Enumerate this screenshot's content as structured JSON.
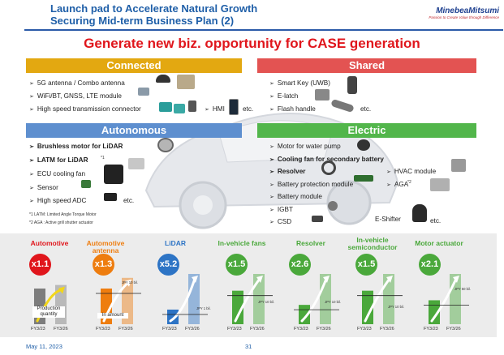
{
  "header": {
    "title_line1": "Launch pad to Accelerate Natural Growth",
    "title_line2": "Securing Mid-term Business Plan (2)",
    "logo_name": "MinebeaMitsumi",
    "logo_tagline": "Passion to Create Value through Difference"
  },
  "headline": "Generate new biz. opportunity for CASE generation",
  "connected": {
    "title": "Connected",
    "items": [
      "5G antenna / Combo antenna",
      "WiFi/BT, GNSS, LTE module",
      "High speed transmission connector"
    ],
    "hmi": "HMI",
    "etc": "etc."
  },
  "shared": {
    "title": "Shared",
    "items": [
      "Smart Key (UWB)",
      "E-latch",
      "Flash handle"
    ],
    "etc": "etc."
  },
  "autonomous": {
    "title": "Autonomous",
    "items": [
      "Brushless motor for LiDAR",
      "LATM for LiDAR",
      "ECU cooling fan",
      "Sensor",
      "High speed ADC"
    ],
    "latm_sup": "*1",
    "etc": "etc.",
    "notes": [
      "*1 LATM: Limited Angle Torque Motor",
      "*2 AGA : Active grill shutter actuator"
    ]
  },
  "electric": {
    "title": "Electric",
    "items": [
      "Motor for water pump",
      "Cooling fan for secondary battery",
      "Resolver",
      "Battery protection module",
      "Battery module",
      "IGBT",
      "CSD"
    ],
    "hvac": "HVAC module",
    "aga": "AGA",
    "aga_sup": "*2",
    "eshifter": "E-Shifter",
    "etc": "etc."
  },
  "growth": {
    "fy_labels": [
      "FY3/23",
      "FY3/26"
    ],
    "unit_labels": [
      "Production quantity",
      "In amount"
    ],
    "categories": [
      {
        "name": "Automotive",
        "multiple": "x1.1"
      },
      {
        "name": "Automotive antenna",
        "multiple": "x1.3",
        "jpy": "JPY 10 bil."
      },
      {
        "name": "LiDAR",
        "multiple": "x5.2",
        "jpy": "JPY 1 bil."
      },
      {
        "name": "In-vehicle fans",
        "multiple": "x1.5",
        "jpy": "JPY 10 bil."
      },
      {
        "name": "Resolver",
        "multiple": "x2.6",
        "jpy": "JPY 10 bil."
      },
      {
        "name": "In-vehicle semiconductor",
        "multiple": "x1.5",
        "jpy": "JPY 10 bil."
      },
      {
        "name": "Motor actuator",
        "multiple": "x2.1",
        "jpy": "JPY 50 bil."
      }
    ]
  },
  "chart_data": {
    "type": "bar",
    "categories": [
      "FY3/23",
      "FY3/26"
    ],
    "series": [
      {
        "name": "Automotive",
        "values": [
          1.0,
          1.1
        ]
      },
      {
        "name": "Automotive antenna",
        "values": [
          1.0,
          1.3
        ]
      },
      {
        "name": "LiDAR",
        "values": [
          1.0,
          5.2
        ]
      },
      {
        "name": "In-vehicle fans",
        "values": [
          1.0,
          1.5
        ]
      },
      {
        "name": "Resolver",
        "values": [
          1.0,
          2.6
        ]
      },
      {
        "name": "In-vehicle semiconductor",
        "values": [
          1.0,
          1.5
        ]
      },
      {
        "name": "Motor actuator",
        "values": [
          1.0,
          2.1
        ]
      }
    ],
    "colors": [
      "#7d7d7d",
      "#ee7d0f",
      "#2d74c5",
      "#4aa83b",
      "#4aa83b",
      "#4aa83b",
      "#4aa83b"
    ]
  },
  "footer": {
    "date": "May 11, 2023",
    "page": "31"
  }
}
